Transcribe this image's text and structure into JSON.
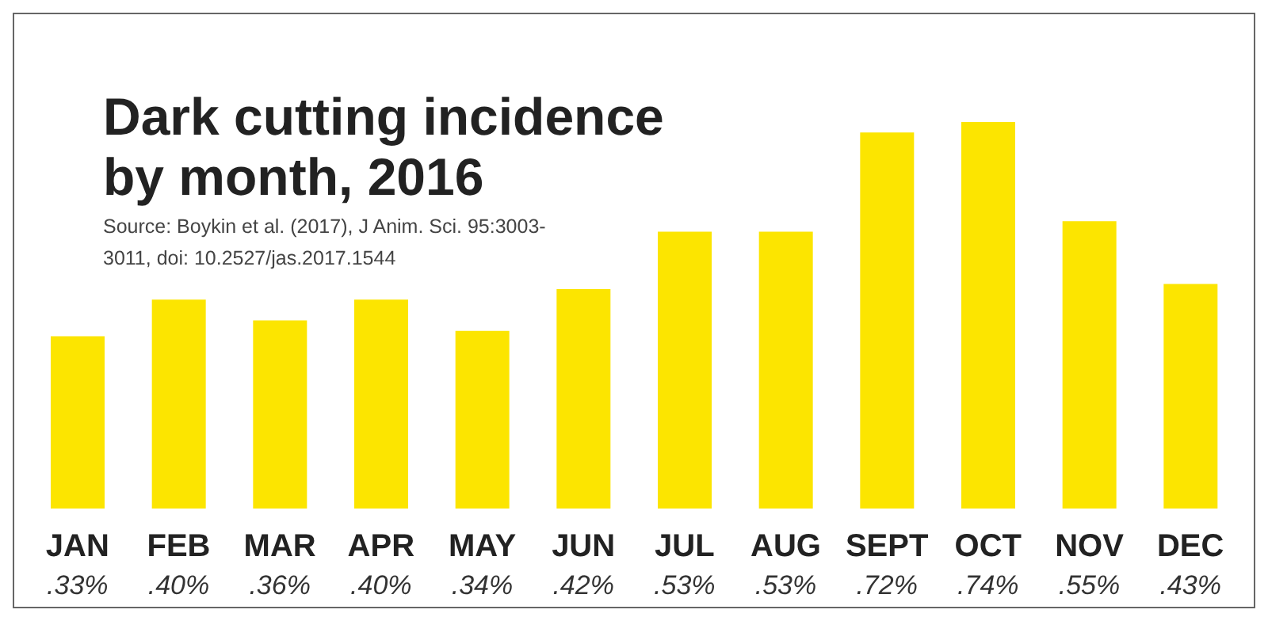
{
  "chart_data": {
    "type": "bar",
    "title": "Dark cutting incidence by month, 2016",
    "annotations": [
      "Source: Boykin et al. (2017), J Anim. Sci. 95:3003-3011, doi: 10.2527/jas.2017.1544"
    ],
    "categories": [
      "JAN",
      "FEB",
      "MAR",
      "APR",
      "MAY",
      "JUN",
      "JUL",
      "AUG",
      "SEPT",
      "OCT",
      "NOV",
      "DEC"
    ],
    "values": [
      0.33,
      0.4,
      0.36,
      0.4,
      0.34,
      0.42,
      0.53,
      0.53,
      0.72,
      0.74,
      0.55,
      0.43
    ],
    "value_labels": [
      ".33%",
      ".40%",
      ".36%",
      ".40%",
      ".34%",
      ".42%",
      ".53%",
      ".53%",
      ".72%",
      ".74%",
      ".55%",
      ".43%"
    ],
    "color": "#fce500",
    "grid": false,
    "legend": false
  }
}
